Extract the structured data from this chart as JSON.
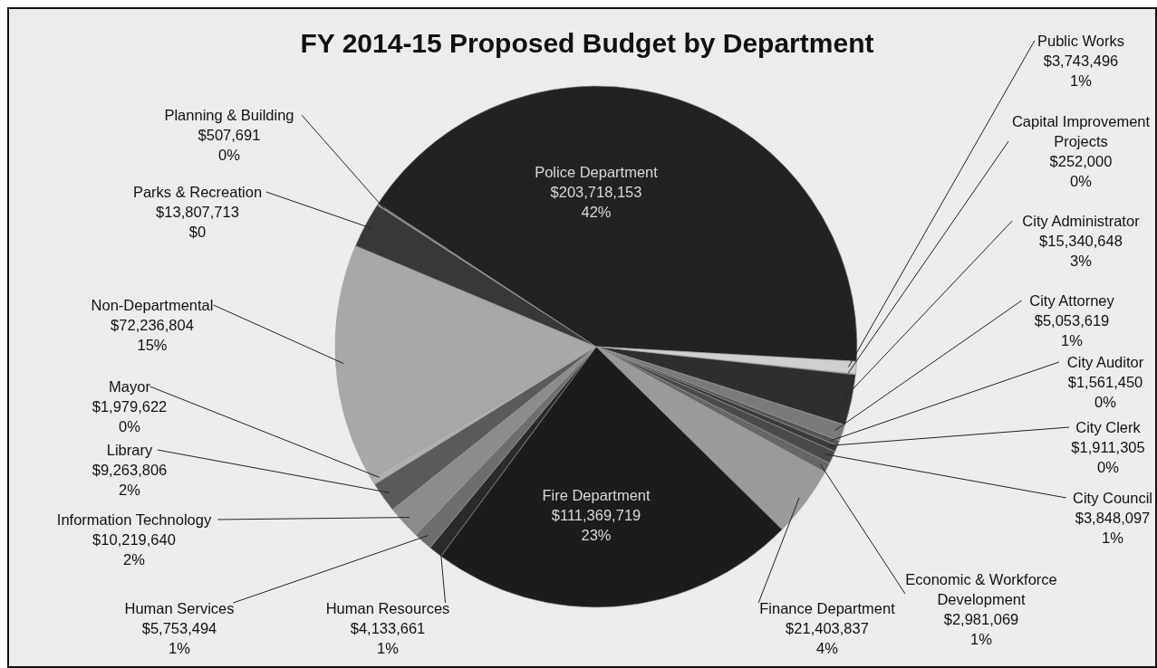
{
  "chart_data": {
    "type": "pie",
    "title": "FY 2014-15 Proposed Budget by Department",
    "categories": [
      "Capital Improvement Projects",
      "City Administrator",
      "City Attorney",
      "City Auditor",
      "City Clerk",
      "City Council",
      "Economic & Workforce Development",
      "Finance Department",
      "Fire Department",
      "Human Resources",
      "Human Services",
      "Information Technology",
      "Library",
      "Mayor",
      "Non-Departmental",
      "Parks & Recreation",
      "Planning & Building",
      "Police Department",
      "Public Works"
    ],
    "values": [
      252000,
      15340648,
      5053619,
      1561450,
      1911305,
      3848097,
      2981069,
      21403837,
      111369719,
      4133661,
      5753494,
      10219640,
      9263806,
      1979622,
      72236804,
      13807713,
      507691,
      203718153,
      3743496
    ],
    "value_labels": [
      "$252,000\n0%",
      "$15,340,648\n3%",
      "$5,053,619\n1%",
      "$1,561,450\n0%",
      "$1,911,305\n0%",
      "$3,848,097\n1%",
      "$2,981,069\n1%",
      "$21,403,837\n4%",
      "$111,369,719\n23%",
      "$4,133,661\n1%",
      "$5,753,494\n1%",
      "$10,219,640\n2%",
      "$9,263,806\n2%",
      "$1,979,622\n0%",
      "$72,236,804\n15%",
      "$13,807,713\n$0",
      "$507,691\n0%",
      "$203,718,153\n42%",
      "$3,743,496\n1%"
    ],
    "colors": [
      "#d9d9d9",
      "#2e2e2e",
      "#7a7a7a",
      "#555555",
      "#3a3a3a",
      "#4a4a4a",
      "#666666",
      "#9a9a9a",
      "#1c1c1c",
      "#2a2a2a",
      "#6e6e6e",
      "#8c8c8c",
      "#5a5a5a",
      "#b0b0b0",
      "#a8a8a8",
      "#383838",
      "#808080",
      "#222222",
      "#d0d0d0"
    ]
  }
}
